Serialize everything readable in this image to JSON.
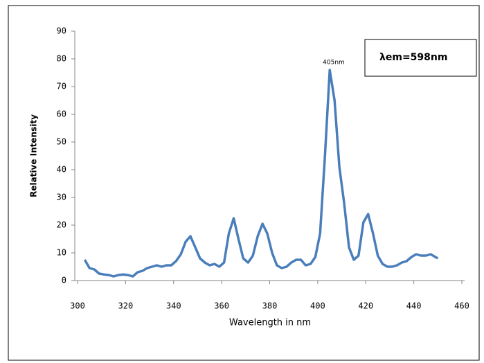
{
  "chart_data": {
    "type": "line",
    "x_label": "Wavelength in nm",
    "y_label": "Relative Intensity",
    "peak_label": "405nm",
    "note": "λem=598nm",
    "x": [
      303,
      305,
      307,
      309,
      311,
      313,
      315,
      317,
      319,
      321,
      323,
      325,
      327,
      329,
      331,
      333,
      335,
      337,
      339,
      341,
      343,
      345,
      347,
      349,
      351,
      353,
      355,
      357,
      359,
      361,
      363,
      365,
      367,
      369,
      371,
      373,
      375,
      377,
      379,
      381,
      383,
      385,
      387,
      389,
      391,
      393,
      395,
      397,
      399,
      401,
      403,
      405,
      407,
      409,
      411,
      413,
      415,
      417,
      419,
      421,
      423,
      425,
      427,
      429,
      431,
      433,
      435,
      437,
      439,
      441,
      443,
      445,
      447,
      449,
      450
    ],
    "series": [
      {
        "name": "Relative Intensity",
        "color": "#4a7ebb",
        "values": [
          7.5,
          4.5,
          4,
          2.5,
          2.2,
          2,
          1.5,
          2,
          2.2,
          2,
          1.5,
          3,
          3.5,
          4.5,
          5,
          5.5,
          5,
          5.5,
          5.5,
          7,
          9.5,
          14,
          16,
          12,
          8,
          6.5,
          5.5,
          6,
          5,
          6.5,
          17,
          22.5,
          15,
          8,
          6.5,
          9,
          16,
          20.5,
          17,
          10,
          5.5,
          4.5,
          5,
          6.5,
          7.5,
          7.5,
          5.5,
          6,
          8.5,
          17,
          45,
          76,
          65,
          41,
          28,
          12,
          7.5,
          9,
          21,
          24,
          17,
          9,
          6,
          5,
          5,
          5.5,
          6.5,
          7,
          8.5,
          9.5,
          9,
          9,
          9.5,
          8.5,
          8
        ]
      }
    ],
    "xlim": [
      300,
      460
    ],
    "xticks": [
      300,
      320,
      340,
      360,
      380,
      400,
      420,
      440,
      460
    ],
    "ylim": [
      0,
      90
    ],
    "yticks": [
      0,
      10,
      20,
      30,
      40,
      50,
      60,
      70,
      80,
      90
    ]
  }
}
